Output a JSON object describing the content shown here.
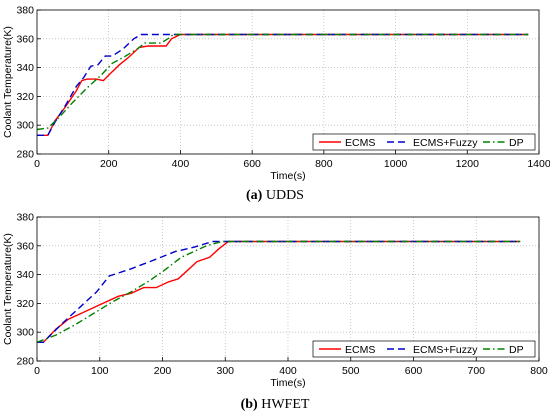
{
  "chart_data": [
    {
      "type": "line",
      "caption_letter": "(a)",
      "caption_text": " UDDS",
      "xlabel": "Time(s)",
      "ylabel": "Coolant Temperature(K)",
      "xlim": [
        0,
        1400
      ],
      "ylim": [
        280,
        380
      ],
      "xticks": [
        0,
        200,
        400,
        600,
        800,
        1000,
        1200,
        1400
      ],
      "yticks": [
        280,
        300,
        320,
        340,
        360,
        380
      ],
      "grid": true,
      "legend_position": "bottom-right",
      "series": [
        {
          "name": "ECMS",
          "color": "#ff0000",
          "dash": "solid",
          "x": [
            0,
            30,
            50,
            80,
            110,
            125,
            140,
            165,
            185,
            205,
            230,
            255,
            285,
            310,
            345,
            360,
            375,
            400,
            700,
            1000,
            1370
          ],
          "y": [
            293,
            293,
            303,
            313,
            324,
            331,
            332,
            332,
            331,
            336,
            342,
            347,
            354,
            355,
            355,
            355,
            360,
            363,
            363,
            363,
            363
          ]
        },
        {
          "name": "ECMS+Fuzzy",
          "color": "#0000cc",
          "dash": "dashed",
          "x": [
            0,
            30,
            50,
            80,
            110,
            130,
            150,
            170,
            190,
            210,
            240,
            270,
            290,
            310,
            700,
            1000,
            1370
          ],
          "y": [
            293,
            293,
            302,
            314,
            327,
            333,
            341,
            342,
            348,
            348,
            353,
            360,
            363,
            363,
            363,
            363,
            363
          ]
        },
        {
          "name": "DP",
          "color": "#008000",
          "dash": "dash-dot",
          "x": [
            0,
            30,
            60,
            100,
            140,
            180,
            210,
            240,
            280,
            300,
            345,
            365,
            380,
            405,
            700,
            1000,
            1370
          ],
          "y": [
            297,
            298,
            305,
            316,
            326,
            335,
            343,
            347,
            353,
            357,
            357,
            360,
            363,
            363,
            363,
            363,
            363
          ]
        }
      ]
    },
    {
      "type": "line",
      "caption_letter": "(b)",
      "caption_text": " HWFET",
      "xlabel": "Time(s)",
      "ylabel": "Coolant Temperature(K)",
      "xlim": [
        0,
        800
      ],
      "ylim": [
        280,
        380
      ],
      "xticks": [
        0,
        100,
        200,
        300,
        400,
        500,
        600,
        700,
        800
      ],
      "yticks": [
        280,
        300,
        320,
        340,
        360,
        380
      ],
      "grid": true,
      "legend_position": "bottom-right",
      "series": [
        {
          "name": "ECMS",
          "color": "#ff0000",
          "dash": "solid",
          "x": [
            0,
            10,
            30,
            50,
            70,
            100,
            130,
            150,
            170,
            190,
            210,
            225,
            240,
            255,
            275,
            290,
            305,
            400,
            550,
            770
          ],
          "y": [
            293,
            293,
            302,
            309,
            313,
            319,
            325,
            327,
            331,
            331,
            335,
            337,
            343,
            349,
            352,
            358,
            363,
            363,
            363,
            363
          ]
        },
        {
          "name": "ECMS+Fuzzy",
          "color": "#0000cc",
          "dash": "dashed",
          "x": [
            0,
            10,
            40,
            70,
            95,
            115,
            150,
            180,
            220,
            250,
            280,
            400,
            550,
            770
          ],
          "y": [
            293,
            293,
            306,
            318,
            328,
            339,
            344,
            349,
            356,
            359,
            363,
            363,
            363,
            363
          ]
        },
        {
          "name": "DP",
          "color": "#008000",
          "dash": "dash-dot",
          "x": [
            0,
            30,
            60,
            90,
            120,
            150,
            180,
            200,
            230,
            270,
            295,
            400,
            550,
            770
          ],
          "y": [
            293,
            298,
            305,
            313,
            321,
            328,
            336,
            342,
            352,
            360,
            363,
            363,
            363,
            363
          ]
        }
      ]
    }
  ]
}
